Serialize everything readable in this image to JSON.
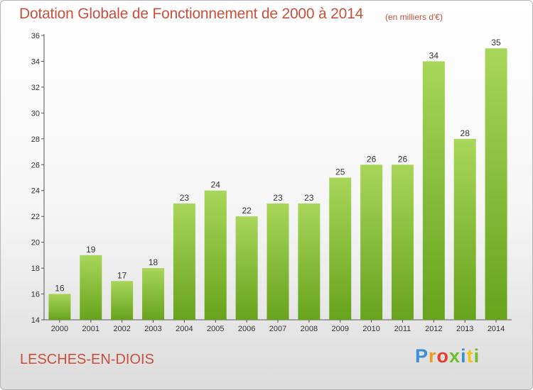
{
  "title": "Dotation Globale de Fonctionnement de 2000 à 2014",
  "subtitle": "(en milliers d'€)",
  "commune": "LESCHES-EN-DIOIS",
  "logo": {
    "letters": [
      "P",
      "r",
      "o",
      "x",
      "i",
      "t",
      "i"
    ],
    "colors": [
      "#3a8fd6",
      "#f29a1d",
      "#e63b2e",
      "#6fbf2c",
      "#3a8fd6",
      "#f2c21d",
      "#6fbf2c"
    ]
  },
  "colors": {
    "bar_light": "#a8d65a",
    "bar_dark": "#68a31c",
    "text_accent": "#c8503c"
  },
  "chart_data": {
    "type": "bar",
    "categories": [
      "2000",
      "2001",
      "2002",
      "2003",
      "2004",
      "2005",
      "2006",
      "2007",
      "2008",
      "2009",
      "2010",
      "2011",
      "2012",
      "2013",
      "2014"
    ],
    "values": [
      16,
      19,
      17,
      18,
      23,
      24,
      22,
      23,
      23,
      25,
      26,
      26,
      34,
      28,
      35
    ],
    "data_labels": [
      "16",
      "19",
      "17",
      "18",
      "23",
      "24",
      "22",
      "23",
      "23",
      "25",
      "26",
      "26",
      "34",
      "28",
      "35"
    ],
    "title": "Dotation Globale de Fonctionnement de 2000 à 2014",
    "subtitle": "(en milliers d'€)",
    "xlabel": "",
    "ylabel": "",
    "ylim": [
      14,
      36
    ],
    "yticks": [
      14,
      16,
      18,
      20,
      22,
      24,
      26,
      28,
      30,
      32,
      34,
      36
    ],
    "ytick_labels": [
      "14",
      "16",
      "18",
      "20",
      "22",
      "24",
      "26",
      "28",
      "30",
      "32",
      "34",
      "36"
    ],
    "grid": false,
    "legend": "none"
  }
}
